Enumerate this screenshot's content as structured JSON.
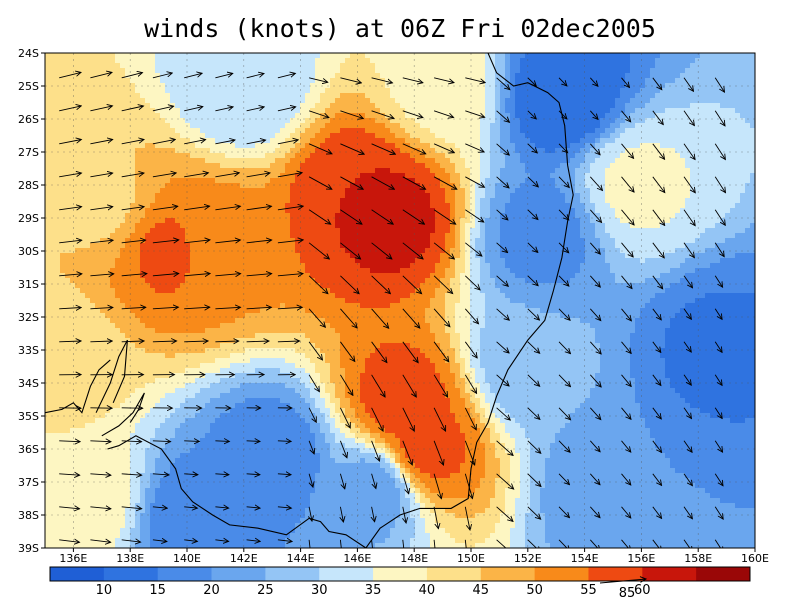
{
  "title": "winds (knots) at 06Z Fri 02dec2005",
  "lat_labels": [
    "24S",
    "25S",
    "26S",
    "27S",
    "28S",
    "29S",
    "30S",
    "31S",
    "32S",
    "33S",
    "34S",
    "35S",
    "36S",
    "37S",
    "38S",
    "39S"
  ],
  "lon_labels": [
    "136E",
    "138E",
    "140E",
    "142E",
    "144E",
    "146E",
    "148E",
    "150E",
    "152E",
    "154E",
    "156E",
    "158E",
    "160E"
  ],
  "colorbar": {
    "labels": [
      "10",
      "15",
      "20",
      "25",
      "30",
      "35",
      "40",
      "45",
      "50",
      "55",
      "60"
    ],
    "colors": [
      "#1f5fd6",
      "#2f73e0",
      "#4a8be8",
      "#6aa6ee",
      "#94c5f5",
      "#c6e6fb",
      "#fdf6c2",
      "#fde08a",
      "#fbb447",
      "#f88a1a",
      "#ee4a12",
      "#c8160b",
      "#9a0707"
    ]
  },
  "reference_vector": {
    "label": "85"
  },
  "gust_centers": [
    {
      "lon": 147.2,
      "lat": 29.0,
      "speed": 62
    },
    {
      "lon": 146.0,
      "lat": 28.3,
      "speed": 60
    },
    {
      "lon": 147.6,
      "lat": 34.6,
      "speed": 58
    },
    {
      "lon": 148.4,
      "lat": 36.0,
      "speed": 57
    },
    {
      "lon": 139.4,
      "lat": 30.0,
      "speed": 56
    },
    {
      "lon": 141.0,
      "lat": 29.8,
      "speed": 52
    },
    {
      "lon": 137.0,
      "lat": 28.5,
      "speed": 44
    },
    {
      "lon": 135.6,
      "lat": 33.5,
      "speed": 42
    },
    {
      "lon": 136.5,
      "lat": 37.5,
      "speed": 38
    },
    {
      "lon": 149.0,
      "lat": 25.0,
      "speed": 38
    },
    {
      "lon": 142.0,
      "lat": 25.0,
      "speed": 30
    },
    {
      "lon": 143.0,
      "lat": 36.3,
      "speed": 16
    },
    {
      "lon": 140.2,
      "lat": 38.2,
      "speed": 16
    },
    {
      "lon": 146.6,
      "lat": 37.2,
      "speed": 22
    },
    {
      "lon": 153.2,
      "lat": 25.3,
      "speed": 10
    },
    {
      "lon": 152.5,
      "lat": 29.5,
      "speed": 18
    },
    {
      "lon": 155.8,
      "lat": 28.0,
      "speed": 36
    },
    {
      "lon": 158.6,
      "lat": 33.0,
      "speed": 14
    },
    {
      "lon": 155.0,
      "lat": 37.0,
      "speed": 20
    },
    {
      "lon": 152.0,
      "lat": 33.5,
      "speed": 26
    }
  ],
  "coastline": [
    [
      [
        150.6,
        24.0
      ],
      [
        150.9,
        24.6
      ],
      [
        151.5,
        25.0
      ],
      [
        152.0,
        24.9
      ],
      [
        152.7,
        25.2
      ],
      [
        153.1,
        25.5
      ],
      [
        153.3,
        26.2
      ],
      [
        153.4,
        27.4
      ],
      [
        153.6,
        28.3
      ],
      [
        153.4,
        29.1
      ],
      [
        153.2,
        30.2
      ],
      [
        152.9,
        31.2
      ],
      [
        152.6,
        32.1
      ],
      [
        152.0,
        32.7
      ],
      [
        151.3,
        33.6
      ],
      [
        150.9,
        34.4
      ],
      [
        150.6,
        35.2
      ],
      [
        150.2,
        35.8
      ],
      [
        150.0,
        36.6
      ],
      [
        149.9,
        37.5
      ],
      [
        149.3,
        37.8
      ],
      [
        148.2,
        37.8
      ],
      [
        147.5,
        38.0
      ],
      [
        146.8,
        38.4
      ],
      [
        146.3,
        39.0
      ]
    ],
    [
      [
        146.3,
        39.0
      ],
      [
        145.6,
        38.6
      ],
      [
        145.0,
        38.5
      ],
      [
        144.7,
        38.2
      ],
      [
        144.3,
        38.1
      ],
      [
        143.5,
        38.6
      ],
      [
        142.5,
        38.4
      ],
      [
        141.5,
        38.3
      ],
      [
        140.9,
        38.0
      ],
      [
        140.2,
        37.6
      ],
      [
        139.8,
        37.2
      ],
      [
        139.6,
        36.6
      ],
      [
        139.1,
        36.0
      ],
      [
        138.2,
        35.6
      ],
      [
        137.6,
        35.9
      ],
      [
        137.2,
        36.0
      ]
    ],
    [
      [
        137.0,
        35.6
      ],
      [
        137.6,
        35.3
      ],
      [
        138.1,
        34.9
      ],
      [
        138.5,
        34.3
      ],
      [
        138.3,
        34.8
      ],
      [
        138.0,
        35.2
      ]
    ],
    [
      [
        136.8,
        34.9
      ],
      [
        137.3,
        34.0
      ],
      [
        137.6,
        33.2
      ],
      [
        137.9,
        32.7
      ],
      [
        137.8,
        33.8
      ],
      [
        137.4,
        34.6
      ]
    ],
    [
      [
        135.0,
        34.9
      ],
      [
        135.6,
        34.8
      ],
      [
        136.0,
        34.6
      ],
      [
        136.3,
        34.9
      ],
      [
        136.6,
        34.1
      ],
      [
        136.9,
        33.6
      ],
      [
        137.3,
        33.3
      ]
    ]
  ]
}
